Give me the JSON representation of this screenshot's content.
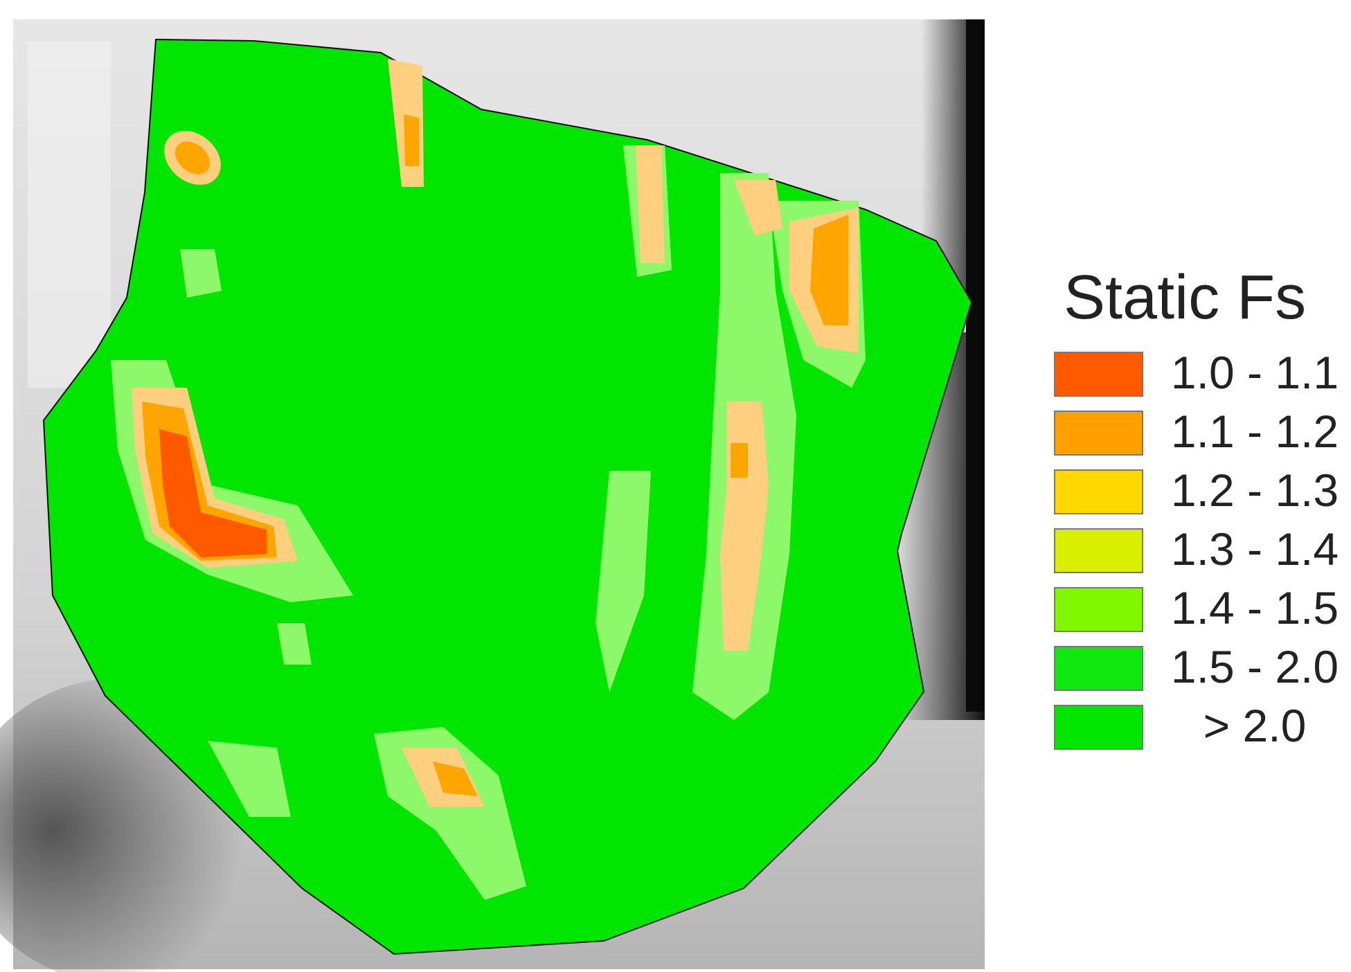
{
  "legend": {
    "title": "Static Fs",
    "items": [
      {
        "label": "1.0 - 1.1",
        "color": "#ff5a00"
      },
      {
        "label": "1.1 - 1.2",
        "color": "#ffa000"
      },
      {
        "label": "1.2 - 1.3",
        "color": "#ffd800"
      },
      {
        "label": "1.3 - 1.4",
        "color": "#d8f000"
      },
      {
        "label": "1.4 - 1.5",
        "color": "#80f800"
      },
      {
        "label": "1.5 - 2.0",
        "color": "#10e810"
      },
      {
        "label": "> 2.0",
        "color": "#00e600"
      }
    ]
  }
}
